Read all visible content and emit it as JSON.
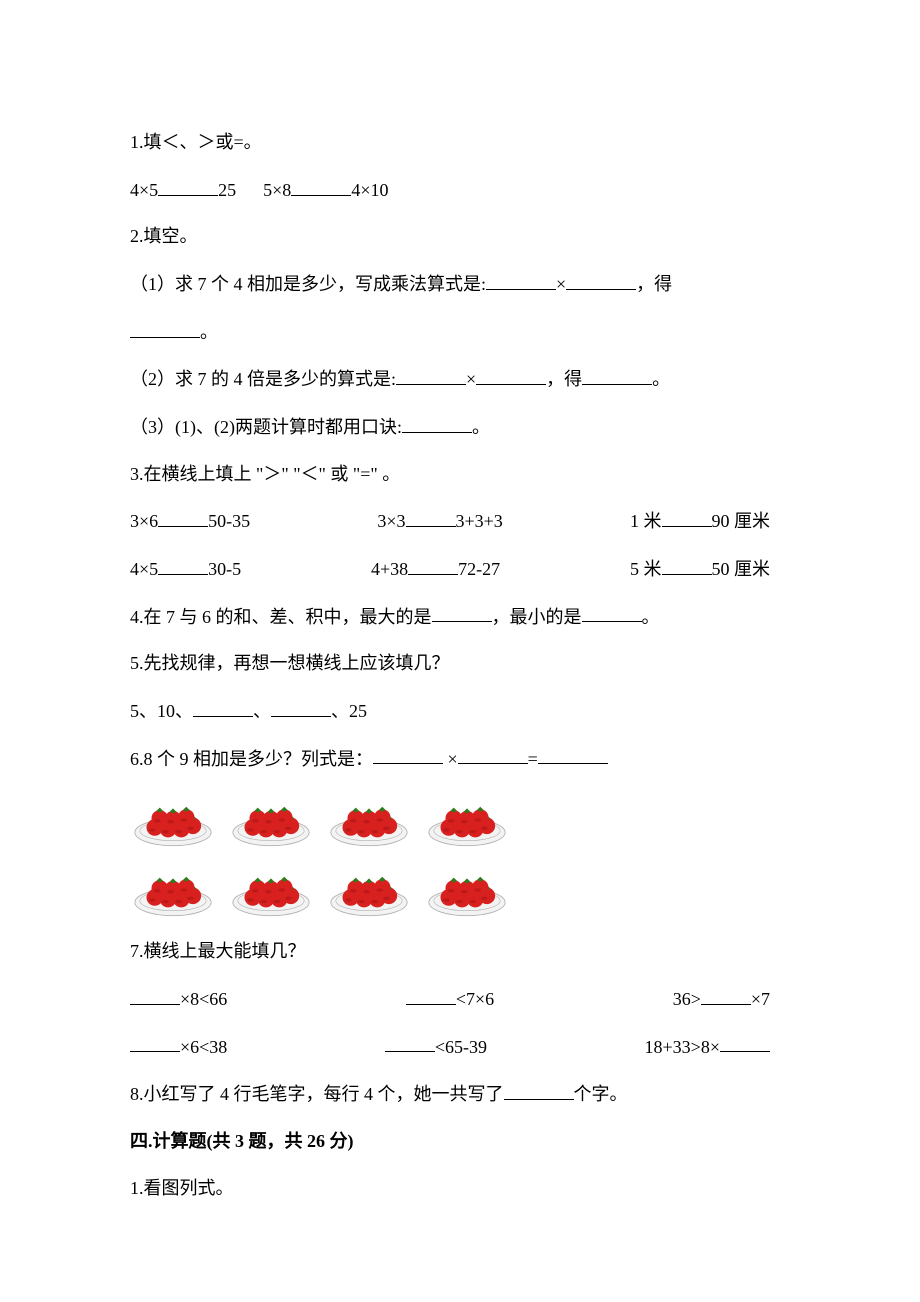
{
  "q1": {
    "title": "1.填＜、＞或=。",
    "expr1_left": "4×5",
    "expr1_right": "25",
    "expr2_left": "5×8",
    "expr2_right": "4×10"
  },
  "q2": {
    "title": "2.填空。",
    "sub1": "（1）求 7 个 4 相加是多少，写成乘法算式是:",
    "sub1_tail": "，得",
    "sub1_period": "。",
    "sub2": "（2）求 7 的 4 倍是多少的算式是:",
    "sub2_tail": "，得",
    "sub2_period": "。",
    "sub3": "（3）(1)、(2)两题计算时都用口诀:",
    "sub3_period": "。",
    "times": "×"
  },
  "q3": {
    "title": "3.在横线上填上 \"＞\" \"＜\" 或 \"=\" 。",
    "r1c1": "3×6",
    "r1c1b": "50-35",
    "r1c2": "3×3",
    "r1c2b": "3+3+3",
    "r1c3": "1 米",
    "r1c3b": "90 厘米",
    "r2c1": "4×5",
    "r2c1b": "30-5",
    "r2c2": "4+38",
    "r2c2b": "72-27",
    "r2c3": "5 米",
    "r2c3b": "50 厘米"
  },
  "q4": {
    "text_a": "4.在 7 与 6 的和、差、积中，最大的是",
    "text_b": "，最小的是",
    "text_c": "。"
  },
  "q5": {
    "title": "5.先找规律，再想一想横线上应该填几？",
    "seq_a": "5、10、",
    "seq_sep": "、",
    "seq_tail": "、25"
  },
  "q6": {
    "text_a": "6.8 个 9 相加是多少？列式是：",
    "times": "×",
    "eq": "="
  },
  "plates": {
    "rows": 2,
    "cols": 4,
    "plate_color": "#f3f3f3",
    "plate_border": "#b0b0b0",
    "tomato_fill": "#d8201f",
    "tomato_shadow": "#8a0f0e",
    "leaf_fill": "#2f7a1e"
  },
  "q7": {
    "title": "7.横线上最大能填几？",
    "r1c1": "×8<66",
    "r1c2": "<7×6",
    "r1c3a": "36>",
    "r1c3b": "×7",
    "r2c1": "×6<38",
    "r2c2": "<65-39",
    "r2c3a": "18+33>8×"
  },
  "q8": {
    "text_a": "8.小红写了 4 行毛笔字，每行 4 个，她一共写了",
    "text_b": "个字。"
  },
  "section4": {
    "title": "四.计算题(共 3 题，共 26 分)"
  },
  "calc1": {
    "title": "1.看图列式。"
  }
}
